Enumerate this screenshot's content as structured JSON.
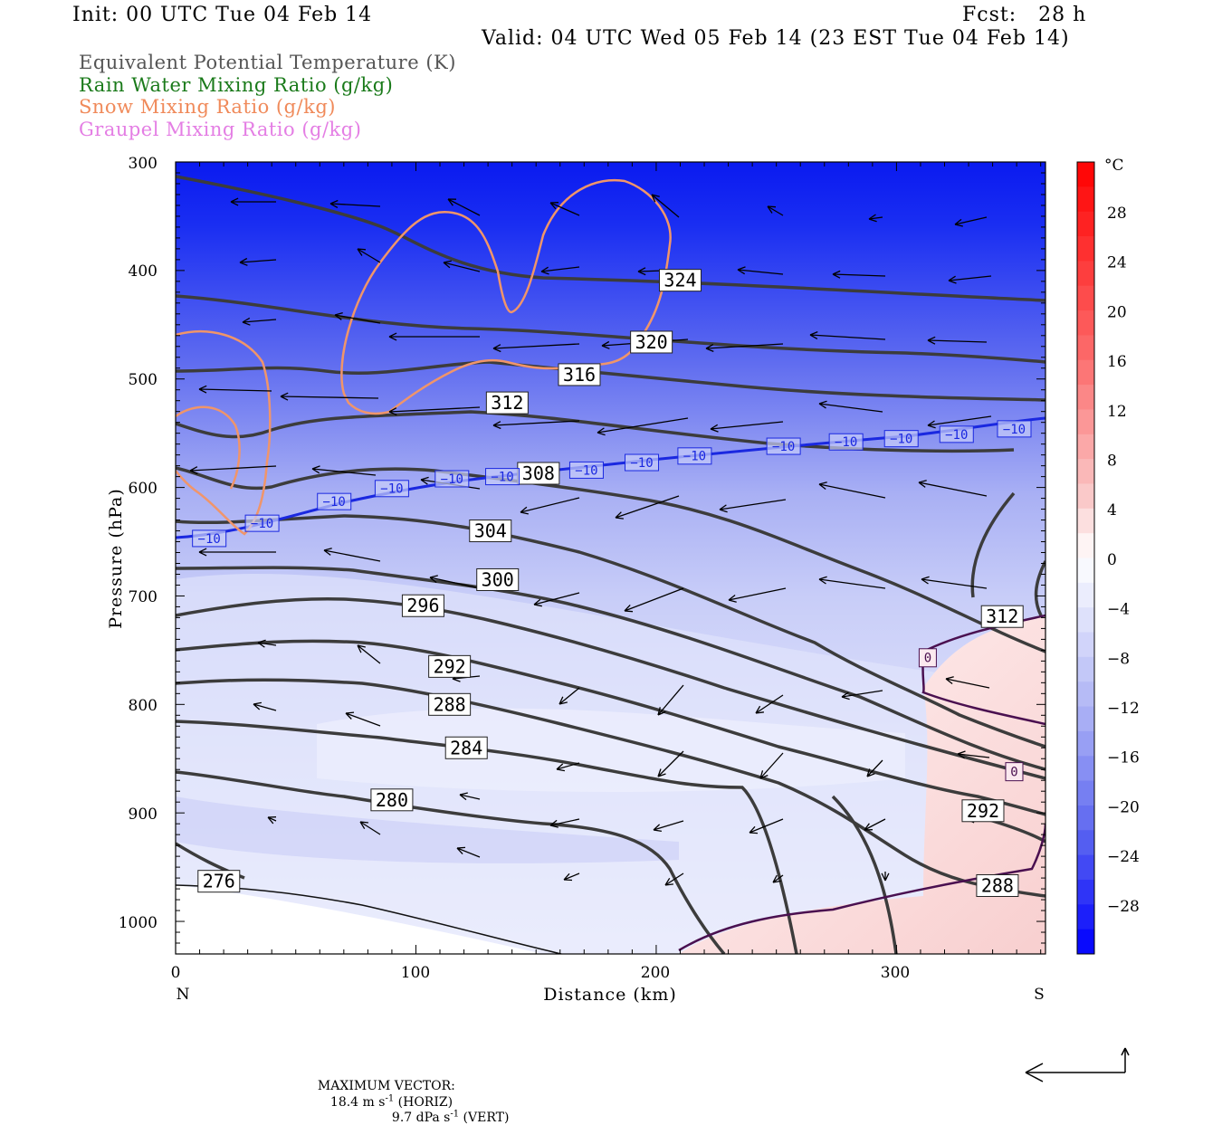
{
  "header": {
    "init": "Init: 00 UTC Tue 04 Feb 14",
    "fcst": "Fcst:   28 h",
    "valid": "Valid: 04 UTC Wed 05 Feb 14 (23 EST Tue 04 Feb 14)"
  },
  "legend": [
    {
      "label": "Equivalent Potential Temperature (K)",
      "color": "#555555"
    },
    {
      "label": "Rain Water Mixing Ratio (g/kg)",
      "color": "#1a7a1a"
    },
    {
      "label": "Snow Mixing Ratio (g/kg)",
      "color": "#f08a5a"
    },
    {
      "label": "Graupel Mixing Ratio (g/kg)",
      "color": "#e47ee4"
    }
  ],
  "colorbar": {
    "unit": "°C",
    "labels": [
      "28",
      "24",
      "20",
      "16",
      "12",
      "8",
      "4",
      "0",
      "−4",
      "−8",
      "−12",
      "−16",
      "−20",
      "−24",
      "−28"
    ]
  },
  "footer": {
    "max_vector_label": "MAXIMUM VECTOR:",
    "horiz": "18.4 m s",
    "horiz_suffix": " (HORIZ)",
    "vert": "9.7 dPa s",
    "vert_suffix": " (VERT)",
    "exp": "-1"
  },
  "chart_data": {
    "type": "contour",
    "title": "",
    "xlabel": "Distance (km)",
    "ylabel": "Pressure (hPa)",
    "xlim": [
      0,
      362
    ],
    "ylim": [
      1030,
      300
    ],
    "x_ticks": [
      "0",
      "100",
      "200",
      "300"
    ],
    "y_ticks": [
      "300",
      "400",
      "500",
      "600",
      "700",
      "800",
      "900",
      "1000"
    ],
    "x_end_labels": {
      "left": "N",
      "right": "S"
    },
    "theta_e_contour_labels": [
      {
        "text": "324",
        "x": 210,
        "p": 409
      },
      {
        "text": "320",
        "x": 198,
        "p": 466
      },
      {
        "text": "316",
        "x": 168,
        "p": 496
      },
      {
        "text": "312",
        "x": 138,
        "p": 522
      },
      {
        "text": "308",
        "x": 151,
        "p": 587
      },
      {
        "text": "304",
        "x": 131,
        "p": 640
      },
      {
        "text": "300",
        "x": 134,
        "p": 685
      },
      {
        "text": "296",
        "x": 103,
        "p": 709
      },
      {
        "text": "292",
        "x": 114,
        "p": 765
      },
      {
        "text": "288",
        "x": 114,
        "p": 800
      },
      {
        "text": "284",
        "x": 121,
        "p": 840
      },
      {
        "text": "280",
        "x": 90,
        "p": 888
      },
      {
        "text": "276",
        "x": 18,
        "p": 963
      },
      {
        "text": "312",
        "x": 344,
        "p": 719
      },
      {
        "text": "292",
        "x": 336,
        "p": 898
      },
      {
        "text": "288",
        "x": 342,
        "p": 967
      }
    ],
    "temperature_contour_labels": [
      {
        "text": "−10",
        "x": 14,
        "p": 647
      },
      {
        "text": "−10",
        "x": 36,
        "p": 633
      },
      {
        "text": "−10",
        "x": 66,
        "p": 613
      },
      {
        "text": "−10",
        "x": 90,
        "p": 601
      },
      {
        "text": "−10",
        "x": 115,
        "p": 592
      },
      {
        "text": "−10",
        "x": 136,
        "p": 590
      },
      {
        "text": "−10",
        "x": 171,
        "p": 584
      },
      {
        "text": "−10",
        "x": 194,
        "p": 577
      },
      {
        "text": "−10",
        "x": 216,
        "p": 571
      },
      {
        "text": "−10",
        "x": 253,
        "p": 562
      },
      {
        "text": "−10",
        "x": 279,
        "p": 558
      },
      {
        "text": "−10",
        "x": 302,
        "p": 555
      },
      {
        "text": "−10",
        "x": 325,
        "p": 551
      },
      {
        "text": "−10",
        "x": 349,
        "p": 546
      }
    ],
    "freezing_contour_labels": [
      {
        "text": "0",
        "x": 313,
        "p": 757
      },
      {
        "text": "0",
        "x": 349,
        "p": 862
      }
    ]
  }
}
